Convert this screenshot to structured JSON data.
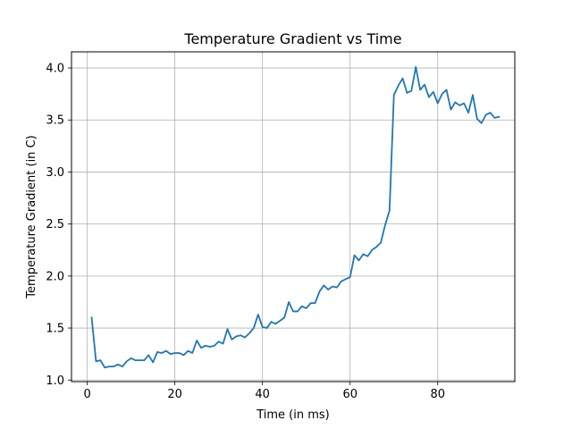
{
  "chart_data": {
    "type": "line",
    "title": "Temperature Gradient vs Time",
    "xlabel": "Time (in ms)",
    "ylabel": "Temperature Gradient (in C)",
    "xlim": [
      -3.6,
      97.6
    ],
    "ylim": [
      0.985,
      4.155
    ],
    "xticks": [
      0,
      20,
      40,
      60,
      80
    ],
    "yticks": [
      1.0,
      1.5,
      2.0,
      2.5,
      3.0,
      3.5,
      4.0
    ],
    "xtick_labels": [
      "0",
      "20",
      "40",
      "60",
      "80"
    ],
    "ytick_labels": [
      "1.0",
      "1.5",
      "2.0",
      "2.5",
      "3.0",
      "3.5",
      "4.0"
    ],
    "grid": true,
    "color": "#1f77b4",
    "series": [
      {
        "x": [
          1,
          2,
          3,
          4,
          5,
          6,
          7,
          8,
          9,
          10,
          11,
          12,
          13,
          14,
          15,
          16,
          17,
          18,
          19,
          20,
          21,
          22,
          23,
          24,
          25,
          26,
          27,
          28,
          29,
          30,
          31,
          32,
          33,
          34,
          35,
          36,
          37,
          38,
          39,
          40,
          41,
          42,
          43,
          44,
          45,
          46,
          47,
          48,
          49,
          50,
          51,
          52,
          53,
          54,
          55,
          56,
          57,
          58,
          59,
          60,
          61,
          62,
          63,
          64,
          65,
          66,
          67,
          68,
          69,
          70,
          71,
          72,
          73,
          74,
          75,
          76,
          77,
          78,
          79,
          80,
          81,
          82,
          83,
          84,
          85,
          86,
          87,
          88,
          89,
          90,
          91,
          92,
          93,
          94
        ],
        "y": [
          1.6,
          1.18,
          1.19,
          1.12,
          1.13,
          1.13,
          1.15,
          1.13,
          1.18,
          1.21,
          1.19,
          1.19,
          1.19,
          1.24,
          1.17,
          1.27,
          1.26,
          1.28,
          1.25,
          1.26,
          1.26,
          1.24,
          1.28,
          1.26,
          1.38,
          1.31,
          1.33,
          1.32,
          1.33,
          1.37,
          1.35,
          1.49,
          1.39,
          1.42,
          1.43,
          1.41,
          1.45,
          1.5,
          1.63,
          1.51,
          1.5,
          1.56,
          1.54,
          1.57,
          1.6,
          1.75,
          1.66,
          1.66,
          1.71,
          1.69,
          1.74,
          1.74,
          1.85,
          1.91,
          1.87,
          1.9,
          1.89,
          1.95,
          1.97,
          1.99,
          2.2,
          2.15,
          2.21,
          2.19,
          2.25,
          2.28,
          2.32,
          2.49,
          2.63,
          3.74,
          3.83,
          3.9,
          3.76,
          3.78,
          4.01,
          3.79,
          3.84,
          3.72,
          3.77,
          3.66,
          3.75,
          3.79,
          3.6,
          3.67,
          3.64,
          3.66,
          3.57,
          3.74,
          3.51,
          3.47,
          3.55,
          3.57,
          3.52,
          3.53
        ]
      }
    ]
  }
}
